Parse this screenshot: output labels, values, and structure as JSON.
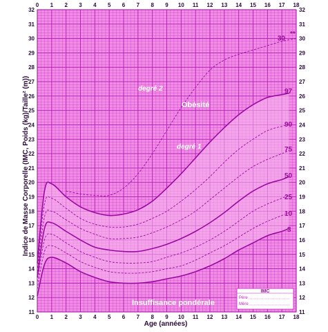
{
  "chart_data": {
    "type": "line",
    "xlabel": "Age (années)",
    "ylabel": "Indice de Masse Corporelle (IMC, Poids (kg)/Taille² (m))",
    "xlim": [
      0,
      18
    ],
    "ylim": [
      11,
      32
    ],
    "x_ticks": [
      0,
      1,
      2,
      3,
      4,
      5,
      6,
      7,
      8,
      9,
      10,
      11,
      12,
      13,
      14,
      15,
      16,
      17,
      18
    ],
    "y_ticks": [
      11,
      12,
      13,
      14,
      15,
      16,
      17,
      18,
      19,
      20,
      21,
      22,
      23,
      24,
      25,
      26,
      27,
      28,
      29,
      30,
      31,
      32
    ],
    "grid": true,
    "series": [
      {
        "name": "3",
        "style": "solid",
        "x": [
          0,
          0.5,
          1,
          2,
          3,
          4,
          5,
          6,
          7,
          8,
          9,
          10,
          11,
          12,
          13,
          14,
          15,
          16,
          17,
          17.5
        ],
        "y": [
          12.1,
          14.3,
          14.8,
          14.4,
          13.8,
          13.4,
          13.1,
          13.0,
          13.0,
          13.1,
          13.3,
          13.5,
          13.8,
          14.2,
          14.7,
          15.3,
          15.8,
          16.3,
          16.6,
          16.8
        ]
      },
      {
        "name": "10",
        "style": "dashed",
        "x": [
          0,
          0.5,
          1,
          2,
          3,
          4,
          5,
          6,
          7,
          8,
          9,
          10,
          11,
          12,
          13,
          14,
          15,
          16,
          17,
          17.5
        ],
        "y": [
          12.6,
          15.2,
          15.6,
          15.1,
          14.5,
          14.1,
          13.8,
          13.7,
          13.7,
          13.8,
          14.0,
          14.2,
          14.6,
          15.1,
          15.6,
          16.2,
          16.8,
          17.3,
          17.7,
          17.9
        ]
      },
      {
        "name": "25",
        "style": "dashed",
        "x": [
          0,
          0.5,
          1,
          2,
          3,
          4,
          5,
          6,
          7,
          8,
          9,
          10,
          11,
          12,
          13,
          14,
          15,
          16,
          17,
          17.5
        ],
        "y": [
          13.1,
          16.0,
          16.4,
          15.8,
          15.2,
          14.8,
          14.5,
          14.4,
          14.4,
          14.5,
          14.8,
          15.1,
          15.5,
          16.0,
          16.6,
          17.3,
          18.0,
          18.5,
          18.9,
          19.1
        ]
      },
      {
        "name": "50",
        "style": "solid",
        "x": [
          0,
          0.5,
          1,
          2,
          3,
          4,
          5,
          6,
          7,
          8,
          9,
          10,
          11,
          12,
          13,
          14,
          15,
          16,
          17,
          17.5
        ],
        "y": [
          13.4,
          16.8,
          17.2,
          16.6,
          16.0,
          15.5,
          15.3,
          15.2,
          15.2,
          15.4,
          15.7,
          16.1,
          16.6,
          17.2,
          17.9,
          18.7,
          19.4,
          19.9,
          20.2,
          20.4
        ]
      },
      {
        "name": "75",
        "style": "dashed",
        "x": [
          0,
          0.5,
          1,
          2,
          3,
          4,
          5,
          6,
          7,
          8,
          9,
          10,
          11,
          12,
          13,
          14,
          15,
          16,
          17,
          17.5
        ],
        "y": [
          13.8,
          17.6,
          18.0,
          17.4,
          16.8,
          16.4,
          16.1,
          16.1,
          16.2,
          16.5,
          16.9,
          17.4,
          18.0,
          18.8,
          19.6,
          20.4,
          21.1,
          21.6,
          22.0,
          22.2
        ]
      },
      {
        "name": "90",
        "style": "dashed",
        "x": [
          0,
          0.5,
          1,
          2,
          3,
          4,
          5,
          6,
          7,
          8,
          9,
          10,
          11,
          12,
          13,
          14,
          15,
          16,
          17,
          17.5
        ],
        "y": [
          14.1,
          18.5,
          18.9,
          18.2,
          17.5,
          17.1,
          16.9,
          16.9,
          17.1,
          17.5,
          18.0,
          18.7,
          19.5,
          20.4,
          21.4,
          22.3,
          23.0,
          23.6,
          23.9,
          24.0
        ]
      },
      {
        "name": "97",
        "style": "solid",
        "x": [
          0,
          0.5,
          1,
          2,
          3,
          4,
          5,
          6,
          7,
          8,
          9,
          10,
          11,
          12,
          13,
          14,
          15,
          16,
          17,
          17.5
        ],
        "y": [
          14.4,
          19.4,
          19.9,
          19.0,
          18.3,
          17.9,
          17.7,
          17.8,
          18.1,
          18.7,
          19.6,
          20.6,
          21.7,
          22.8,
          23.8,
          24.7,
          25.4,
          25.9,
          26.1,
          26.2
        ]
      },
      {
        "name": "30",
        "style": "dashed",
        "x": [
          2,
          3,
          4,
          5,
          6,
          7,
          8,
          9,
          10,
          11,
          12,
          13,
          14,
          15,
          16,
          17,
          18
        ],
        "y": [
          19.4,
          19.2,
          19.1,
          19.1,
          19.6,
          20.6,
          22.0,
          23.6,
          25.2,
          26.6,
          27.8,
          28.5,
          28.9,
          29.2,
          29.5,
          29.8,
          30.0
        ]
      }
    ],
    "labels": {
      "p97": "97",
      "p90": "90",
      "p75": "75",
      "p50": "50",
      "p25": "25",
      "p10": "10",
      "p3": "3",
      "p30": "30",
      "star": "**"
    },
    "annotations": {
      "degre2": "degré 2",
      "degre1": "degré 1",
      "obesite": "Obésité",
      "insuffisance": "Insuffisance pondérale"
    },
    "box": {
      "title": "IMC",
      "line1": "Père",
      "line2": "Mère"
    }
  },
  "colors": {
    "background_fill": "#f28ce6",
    "grid": "#b21eb4",
    "curve": "#9a0aa0",
    "band_fill": "#f8b8ee"
  }
}
